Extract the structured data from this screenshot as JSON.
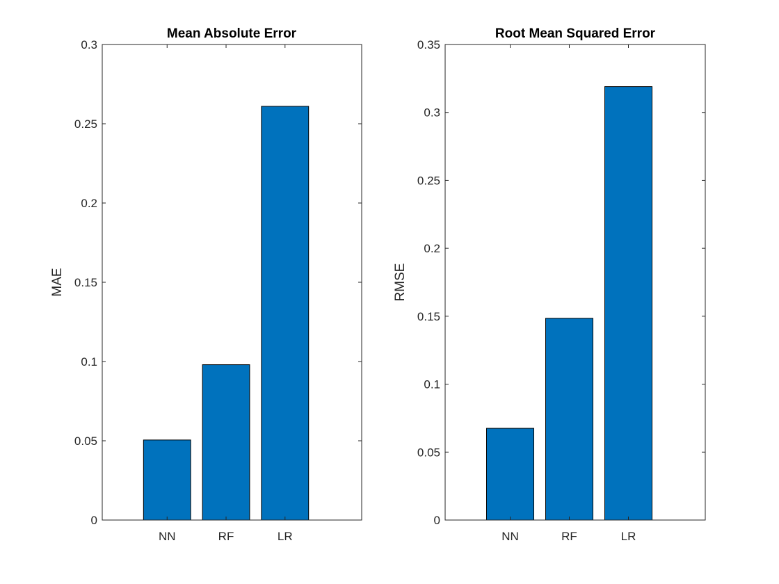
{
  "colors": {
    "bar_fill": "#0072BD",
    "bar_edge": "#000000",
    "axis": "#262626",
    "background": "#ffffff"
  },
  "chart_data": [
    {
      "type": "bar",
      "title": "Mean Absolute Error",
      "xlabel": "",
      "ylabel": "MAE",
      "categories": [
        "NN",
        "RF",
        "LR"
      ],
      "values": [
        0.0505,
        0.098,
        0.261
      ],
      "ylim": [
        0,
        0.3
      ],
      "yticks": [
        0,
        0.05,
        0.1,
        0.15,
        0.2,
        0.25,
        0.3
      ],
      "ytick_labels": [
        "0",
        "0.05",
        "0.1",
        "0.15",
        "0.2",
        "0.25",
        "0.3"
      ],
      "xlim": [
        -0.1,
        4.3
      ],
      "grid": false,
      "box": true
    },
    {
      "type": "bar",
      "title": "Root Mean Squared Error",
      "xlabel": "",
      "ylabel": "RMSE",
      "categories": [
        "NN",
        "RF",
        "LR"
      ],
      "values": [
        0.0675,
        0.1485,
        0.319
      ],
      "ylim": [
        0,
        0.35
      ],
      "yticks": [
        0,
        0.05,
        0.1,
        0.15,
        0.2,
        0.25,
        0.3,
        0.35
      ],
      "ytick_labels": [
        "0",
        "0.05",
        "0.1",
        "0.15",
        "0.2",
        "0.25",
        "0.3",
        "0.35"
      ],
      "xlim": [
        -0.1,
        4.3
      ],
      "grid": false,
      "box": true
    }
  ]
}
